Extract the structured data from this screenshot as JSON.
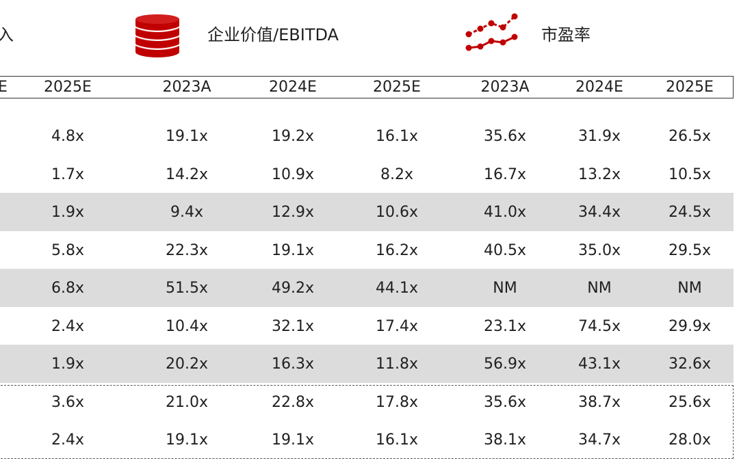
{
  "headers": {
    "revenue_label": "入",
    "ev_ebitda_label": "企业价值/EBITDA",
    "pe_label": "市盈率"
  },
  "icons": {
    "coins": "coin-stack-icon",
    "trend": "line-chart-icon",
    "accent_color": "#c00000"
  },
  "years": [
    "E",
    "2025E",
    "2023A",
    "2024E",
    "2025E",
    "2023A",
    "2024E",
    "2025E"
  ],
  "rows": [
    [
      "4.8x",
      "19.1x",
      "19.2x",
      "16.1x",
      "35.6x",
      "31.9x",
      "26.5x"
    ],
    [
      "1.7x",
      "14.2x",
      "10.9x",
      "8.2x",
      "16.7x",
      "13.2x",
      "10.5x"
    ],
    [
      "1.9x",
      "9.4x",
      "12.9x",
      "10.6x",
      "41.0x",
      "34.4x",
      "24.5x"
    ],
    [
      "5.8x",
      "22.3x",
      "19.1x",
      "16.2x",
      "40.5x",
      "35.0x",
      "29.5x"
    ],
    [
      "6.8x",
      "51.5x",
      "49.2x",
      "44.1x",
      "NM",
      "NM",
      "NM"
    ],
    [
      "2.4x",
      "10.4x",
      "32.1x",
      "17.4x",
      "23.1x",
      "74.5x",
      "29.9x"
    ],
    [
      "1.9x",
      "20.2x",
      "16.3x",
      "11.8x",
      "56.9x",
      "43.1x",
      "32.6x"
    ],
    [
      "3.6x",
      "21.0x",
      "22.8x",
      "17.8x",
      "35.6x",
      "38.7x",
      "25.6x"
    ],
    [
      "2.4x",
      "19.1x",
      "19.1x",
      "16.1x",
      "38.1x",
      "34.7x",
      "28.0x"
    ]
  ],
  "shaded_rows": [
    1,
    3,
    5
  ],
  "dashed_rows": [
    7,
    8
  ],
  "colors": {
    "band": "#dcdcdc",
    "text": "#1f1f1f",
    "border": "#333333"
  }
}
